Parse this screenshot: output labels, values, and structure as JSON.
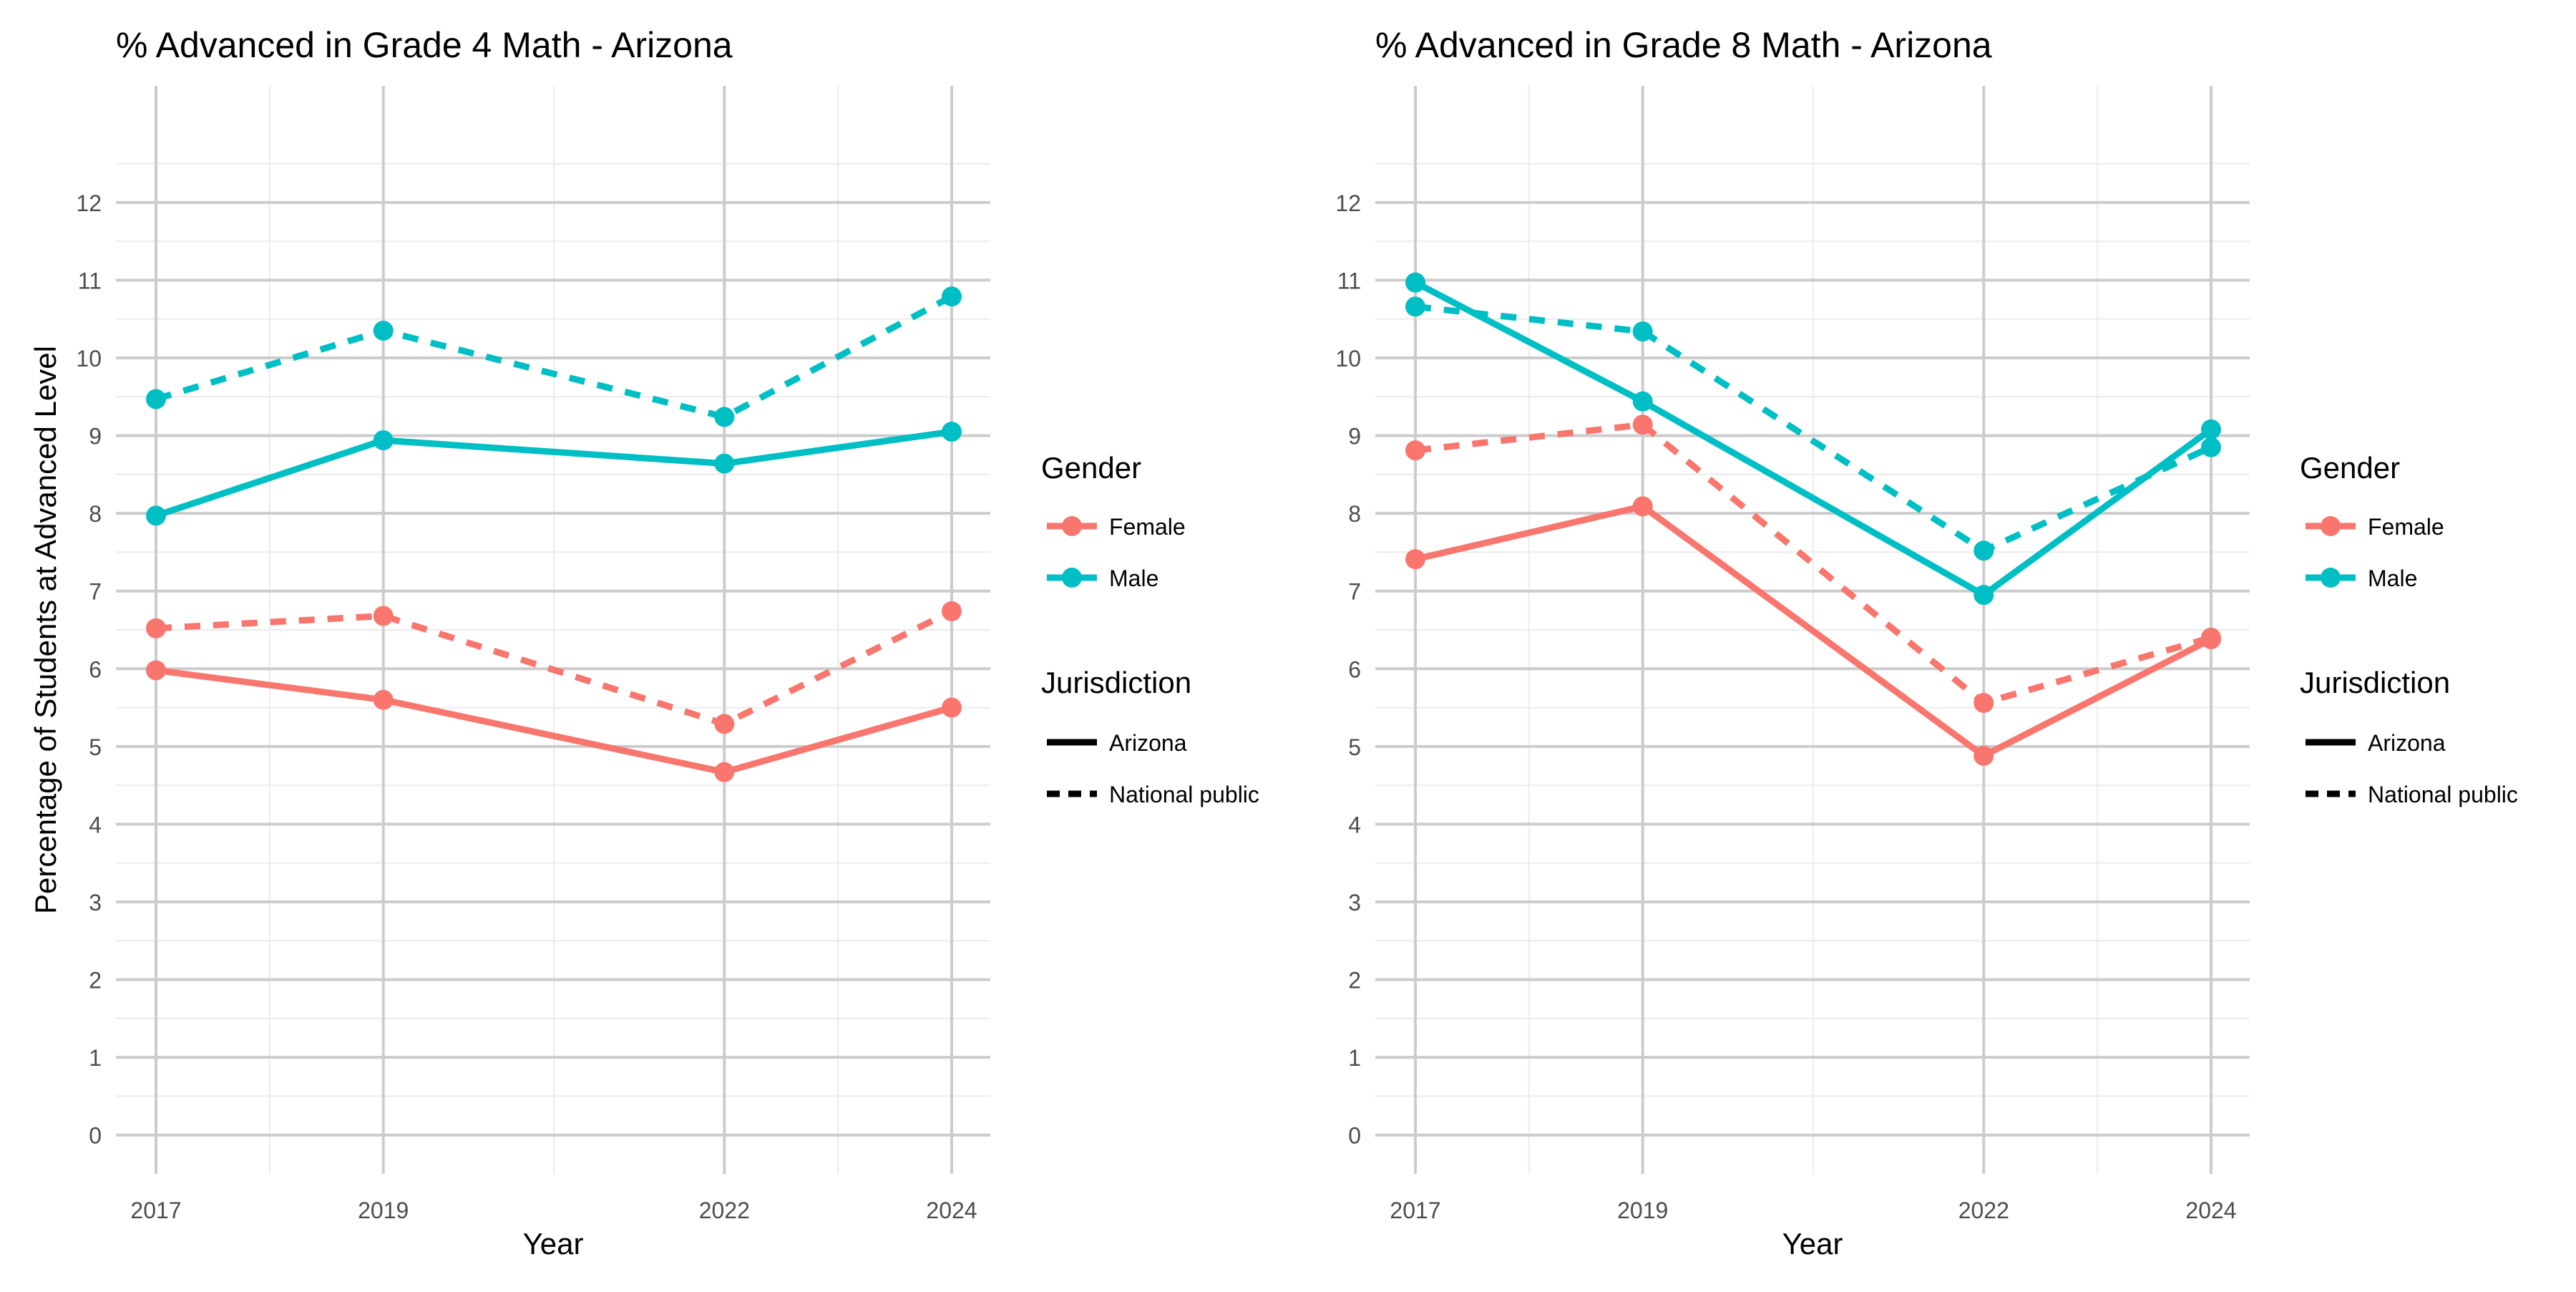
{
  "chart_data": [
    {
      "type": "line",
      "title": "% Advanced in Grade 4 Math - Arizona",
      "xlabel": "Year",
      "ylabel": "Percentage of Students at Advanced Level",
      "x": [
        2017,
        2019,
        2022,
        2024
      ],
      "xticks": [
        "2017",
        "2019",
        "2022",
        "2024"
      ],
      "yticks": [
        "0",
        "1",
        "2",
        "3",
        "4",
        "5",
        "6",
        "7",
        "8",
        "9",
        "10",
        "11",
        "12"
      ],
      "ylim": [
        -0.5,
        13.5
      ],
      "grid": true,
      "series": [
        {
          "gender": "Male",
          "jurisdiction": "National public",
          "values": [
            9.47,
            10.35,
            9.24,
            10.79
          ]
        },
        {
          "gender": "Male",
          "jurisdiction": "Arizona",
          "values": [
            7.97,
            8.94,
            8.64,
            9.05
          ]
        },
        {
          "gender": "Female",
          "jurisdiction": "National public",
          "values": [
            6.52,
            6.68,
            5.29,
            6.74
          ]
        },
        {
          "gender": "Female",
          "jurisdiction": "Arizona",
          "values": [
            5.98,
            5.6,
            4.67,
            5.5
          ]
        }
      ]
    },
    {
      "type": "line",
      "title": "% Advanced in Grade 8 Math - Arizona",
      "xlabel": "Year",
      "ylabel": "",
      "x": [
        2017,
        2019,
        2022,
        2024
      ],
      "xticks": [
        "2017",
        "2019",
        "2022",
        "2024"
      ],
      "yticks": [
        "0",
        "1",
        "2",
        "3",
        "4",
        "5",
        "6",
        "7",
        "8",
        "9",
        "10",
        "11",
        "12"
      ],
      "ylim": [
        -0.5,
        13.5
      ],
      "grid": true,
      "series": [
        {
          "gender": "Male",
          "jurisdiction": "National public",
          "values": [
            10.66,
            10.34,
            7.52,
            8.85
          ]
        },
        {
          "gender": "Male",
          "jurisdiction": "Arizona",
          "values": [
            10.97,
            9.44,
            6.95,
            9.08
          ]
        },
        {
          "gender": "Female",
          "jurisdiction": "National public",
          "values": [
            8.81,
            9.14,
            5.56,
            6.4
          ]
        },
        {
          "gender": "Female",
          "jurisdiction": "Arizona",
          "values": [
            7.41,
            8.09,
            4.88,
            6.38
          ]
        }
      ]
    }
  ],
  "legend": {
    "placement": "right",
    "gender_title": "Gender",
    "gender_items": [
      {
        "label": "Female",
        "color": "#F8766D"
      },
      {
        "label": "Male",
        "color": "#00BFC4"
      }
    ],
    "jurisdiction_title": "Jurisdiction",
    "jurisdiction_items": [
      {
        "label": "Arizona",
        "linetype": "solid"
      },
      {
        "label": "National public",
        "linetype": "dashed"
      }
    ]
  },
  "colors": {
    "Female": "#F8766D",
    "Male": "#00BFC4",
    "grid_major": "#cccccc",
    "grid_minor": "#ebebeb",
    "axis_text": "#4d4d4d",
    "title_text": "#000000"
  }
}
